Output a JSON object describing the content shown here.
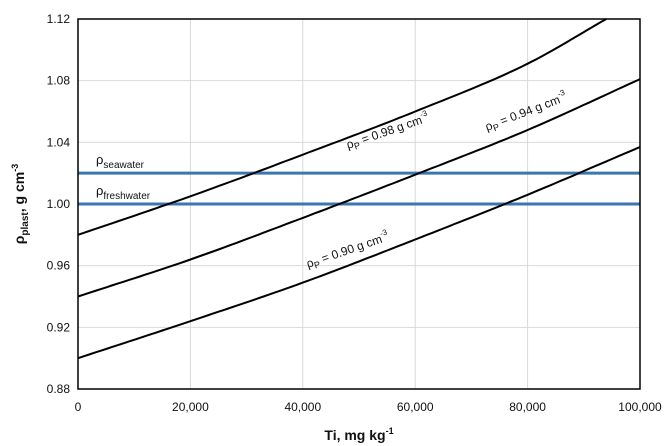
{
  "chart_data": {
    "type": "line",
    "xlabel": {
      "main": "Ti, mg kg",
      "sup": "-1"
    },
    "ylabel": {
      "main": "ρ",
      "sub": "plast",
      "rest": ", g cm",
      "sup": "-3"
    },
    "xlim": [
      0,
      100000
    ],
    "ylim": [
      0.88,
      1.12
    ],
    "x_ticks": [
      0,
      20000,
      40000,
      60000,
      80000,
      100000
    ],
    "x_tick_labels": [
      "0",
      "20,000",
      "40,000",
      "60,000",
      "80,000",
      "100,000"
    ],
    "y_ticks": [
      0.88,
      0.92,
      0.96,
      1.0,
      1.04,
      1.08,
      1.12
    ],
    "y_tick_labels": [
      "0.88",
      "0.92",
      "0.96",
      "1.00",
      "1.04",
      "1.08",
      "1.12"
    ],
    "grid": {
      "vertical": true,
      "horizontal": true
    },
    "curve_color": "#000000",
    "reference_color": "#3a77b0",
    "curves": [
      {
        "label": {
          "rho": "ρ",
          "sub": "P",
          "text": " = 0.90 g cm",
          "sup": "-3"
        },
        "x": [
          0,
          20000,
          40000,
          60000,
          80000,
          100000
        ],
        "y": [
          0.9,
          0.924,
          0.949,
          0.977,
          1.006,
          1.037
        ]
      },
      {
        "label": {
          "rho": "ρ",
          "sub": "P",
          "text": " = 0.94 g cm",
          "sup": "-3"
        },
        "x": [
          0,
          20000,
          40000,
          60000,
          80000,
          100000
        ],
        "y": [
          0.94,
          0.964,
          0.991,
          1.019,
          1.048,
          1.081
        ]
      },
      {
        "label": {
          "rho": "ρ",
          "sub": "P",
          "text": " = 0.98 g cm",
          "sup": "-3"
        },
        "x": [
          0,
          20000,
          40000,
          60000,
          80000,
          94000
        ],
        "y": [
          0.98,
          1.005,
          1.032,
          1.06,
          1.091,
          1.12
        ]
      }
    ],
    "reference_lines": [
      {
        "label": {
          "rho": "ρ",
          "sub": "seawater"
        },
        "y": 1.02
      },
      {
        "label": {
          "rho": "ρ",
          "sub": "freshwater"
        },
        "y": 1.0
      }
    ]
  }
}
